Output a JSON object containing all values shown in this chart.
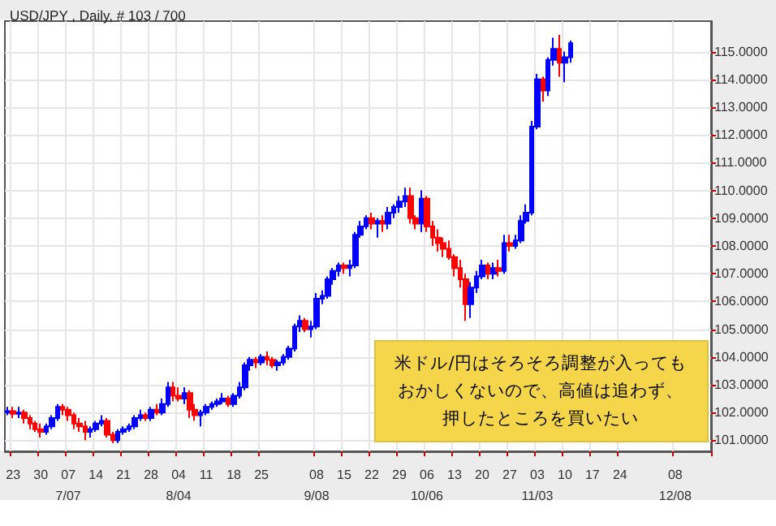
{
  "chart_data": {
    "type": "candlestick",
    "title": "USD/JPY , Daily, # 103 / 700",
    "categories": [
      null,
      "23",
      null,
      null,
      null,
      null,
      "30",
      null,
      null,
      null,
      null,
      "07\n7/07",
      null,
      null,
      null,
      null,
      "14",
      null,
      null,
      null,
      null,
      "21",
      null,
      null,
      null,
      null,
      "28",
      null,
      null,
      null,
      null,
      "04\n8/04",
      null,
      null,
      null,
      null,
      "11",
      null,
      null,
      null,
      null,
      "18",
      null,
      null,
      null,
      null,
      "25",
      null,
      null,
      null,
      null,
      null,
      null,
      null,
      null,
      null,
      "08\n9/08",
      null,
      null,
      null,
      null,
      "15",
      null,
      null,
      null,
      null,
      "22",
      null,
      null,
      null,
      null,
      "29",
      null,
      null,
      null,
      null,
      "06\n10/06",
      null,
      null,
      null,
      null,
      "13",
      null,
      null,
      null,
      null,
      "20",
      null,
      null,
      null,
      null,
      "27",
      null,
      null,
      null,
      null,
      "03\n11/03",
      null,
      null,
      null,
      null,
      "10",
      null,
      null,
      null,
      null,
      "17",
      null,
      null,
      null,
      null,
      "24",
      null,
      null,
      null,
      null,
      null,
      null,
      null,
      null,
      null,
      "08\n12/08",
      null,
      null,
      null,
      null,
      null,
      null
    ],
    "ohlc": [
      [
        102.0,
        102.2,
        101.9,
        102.05
      ],
      [
        102.05,
        102.2,
        101.8,
        101.95
      ],
      [
        101.95,
        102.2,
        101.8,
        102.0
      ],
      [
        102.0,
        102.1,
        101.6,
        101.8
      ],
      [
        101.8,
        101.9,
        101.4,
        101.6
      ],
      [
        101.6,
        101.7,
        101.3,
        101.4
      ],
      [
        101.4,
        101.6,
        101.1,
        101.3
      ],
      [
        101.3,
        101.6,
        101.2,
        101.5
      ],
      [
        101.5,
        101.9,
        101.4,
        101.8
      ],
      [
        101.8,
        102.3,
        101.7,
        102.2
      ],
      [
        102.2,
        102.3,
        101.9,
        102.1
      ],
      [
        102.1,
        102.2,
        101.7,
        101.9
      ],
      [
        101.9,
        102.0,
        101.4,
        101.6
      ],
      [
        101.6,
        101.8,
        101.3,
        101.5
      ],
      [
        101.5,
        101.7,
        101.0,
        101.3
      ],
      [
        101.3,
        101.5,
        101.1,
        101.4
      ],
      [
        101.4,
        101.7,
        101.3,
        101.6
      ],
      [
        101.6,
        101.9,
        101.5,
        101.7
      ],
      [
        101.7,
        101.8,
        101.1,
        101.2
      ],
      [
        101.2,
        101.3,
        100.9,
        101.0
      ],
      [
        101.0,
        101.4,
        100.9,
        101.3
      ],
      [
        101.3,
        101.5,
        101.2,
        101.4
      ],
      [
        101.4,
        101.6,
        101.3,
        101.5
      ],
      [
        101.5,
        101.9,
        101.4,
        101.8
      ],
      [
        101.8,
        102.1,
        101.7,
        101.9
      ],
      [
        101.9,
        102.0,
        101.7,
        101.8
      ],
      [
        101.8,
        102.2,
        101.7,
        102.1
      ],
      [
        102.1,
        102.3,
        101.9,
        102.0
      ],
      [
        102.0,
        102.5,
        101.9,
        102.3
      ],
      [
        102.3,
        103.1,
        102.2,
        102.9
      ],
      [
        102.9,
        103.1,
        102.4,
        102.6
      ],
      [
        102.6,
        102.9,
        102.4,
        102.5
      ],
      [
        102.5,
        102.9,
        102.3,
        102.7
      ],
      [
        102.7,
        102.8,
        101.8,
        102.1
      ],
      [
        102.1,
        102.3,
        101.7,
        101.9
      ],
      [
        101.9,
        102.1,
        101.5,
        102.0
      ],
      [
        102.0,
        102.3,
        101.9,
        102.2
      ],
      [
        102.2,
        102.4,
        102.1,
        102.3
      ],
      [
        102.3,
        102.5,
        102.2,
        102.4
      ],
      [
        102.4,
        102.7,
        102.3,
        102.5
      ],
      [
        102.5,
        102.6,
        102.2,
        102.3
      ],
      [
        102.3,
        102.7,
        102.2,
        102.6
      ],
      [
        102.6,
        103.1,
        102.5,
        102.9
      ],
      [
        102.9,
        103.8,
        102.8,
        103.7
      ],
      [
        103.7,
        104.0,
        103.5,
        103.9
      ],
      [
        103.9,
        104.0,
        103.6,
        103.8
      ],
      [
        103.8,
        104.1,
        103.7,
        104.0
      ],
      [
        104.0,
        104.2,
        103.7,
        103.9
      ],
      [
        103.9,
        104.0,
        103.6,
        103.7
      ],
      [
        103.7,
        103.9,
        103.5,
        103.8
      ],
      [
        103.8,
        104.1,
        103.7,
        104.0
      ],
      [
        104.0,
        104.4,
        103.9,
        104.3
      ],
      [
        104.3,
        105.2,
        104.2,
        105.1
      ],
      [
        105.1,
        105.5,
        104.9,
        105.3
      ],
      [
        105.3,
        105.4,
        104.9,
        105.0
      ],
      [
        105.0,
        105.3,
        104.7,
        105.1
      ],
      [
        105.1,
        106.3,
        105.0,
        106.1
      ],
      [
        106.1,
        106.4,
        105.9,
        106.2
      ],
      [
        106.2,
        106.9,
        106.1,
        106.8
      ],
      [
        106.8,
        107.2,
        106.6,
        107.1
      ],
      [
        107.1,
        107.4,
        106.9,
        107.3
      ],
      [
        107.3,
        107.4,
        107.0,
        107.2
      ],
      [
        107.2,
        107.5,
        106.9,
        107.3
      ],
      [
        107.3,
        108.5,
        107.2,
        108.4
      ],
      [
        108.4,
        108.9,
        108.3,
        108.7
      ],
      [
        108.7,
        109.1,
        108.6,
        109.0
      ],
      [
        109.0,
        109.2,
        108.6,
        108.8
      ],
      [
        108.8,
        109.0,
        108.3,
        108.9
      ],
      [
        108.9,
        109.1,
        108.5,
        108.8
      ],
      [
        108.8,
        109.4,
        108.6,
        109.2
      ],
      [
        109.2,
        109.5,
        109.0,
        109.4
      ],
      [
        109.4,
        109.8,
        109.2,
        109.6
      ],
      [
        109.6,
        110.1,
        109.4,
        109.8
      ],
      [
        109.8,
        110.1,
        108.8,
        109.0
      ],
      [
        109.0,
        109.1,
        108.6,
        108.8
      ],
      [
        108.8,
        110.0,
        108.5,
        109.7
      ],
      [
        109.7,
        109.8,
        108.5,
        108.7
      ],
      [
        108.7,
        108.9,
        108.0,
        108.3
      ],
      [
        108.3,
        108.6,
        107.8,
        108.1
      ],
      [
        108.1,
        108.3,
        107.6,
        107.9
      ],
      [
        107.9,
        108.2,
        107.5,
        107.6
      ],
      [
        107.6,
        107.7,
        106.9,
        107.2
      ],
      [
        107.2,
        107.5,
        106.5,
        106.8
      ],
      [
        106.8,
        107.0,
        105.3,
        105.9
      ],
      [
        105.9,
        106.7,
        105.4,
        106.5
      ],
      [
        106.5,
        107.1,
        106.3,
        106.9
      ],
      [
        106.9,
        107.5,
        106.8,
        107.3
      ],
      [
        107.3,
        107.4,
        106.8,
        107.0
      ],
      [
        107.0,
        107.4,
        106.8,
        107.2
      ],
      [
        107.2,
        107.5,
        106.9,
        107.1
      ],
      [
        107.1,
        108.4,
        107.0,
        108.1
      ],
      [
        108.1,
        108.4,
        107.8,
        108.0
      ],
      [
        108.0,
        108.4,
        107.9,
        108.2
      ],
      [
        108.2,
        109.1,
        108.1,
        108.9
      ],
      [
        108.9,
        109.5,
        108.8,
        109.2
      ],
      [
        109.2,
        112.5,
        109.1,
        112.3
      ],
      [
        112.3,
        114.2,
        112.2,
        114.0
      ],
      [
        114.0,
        114.1,
        113.2,
        113.6
      ],
      [
        113.6,
        114.8,
        113.4,
        114.7
      ],
      [
        114.7,
        115.5,
        114.5,
        115.1
      ],
      [
        115.1,
        115.6,
        114.1,
        114.6
      ],
      [
        114.6,
        115.0,
        113.9,
        114.8
      ],
      [
        114.8,
        115.4,
        114.6,
        115.3
      ],
      null,
      null,
      null,
      null,
      null,
      null,
      null,
      null,
      null,
      null,
      null,
      null,
      null,
      null,
      null,
      null,
      null,
      null,
      null,
      null,
      null,
      null,
      null,
      null,
      null
    ],
    "colors": [
      "#0000ff",
      "#ff0000",
      "#0000ff",
      "#ff0000",
      "#ff0000",
      "#ff0000",
      "#ff0000",
      "#0000ff",
      "#0000ff",
      "#0000ff",
      "#ff0000",
      "#ff0000",
      "#ff0000",
      "#ff0000",
      "#ff0000",
      "#0000ff",
      "#0000ff",
      "#0000ff",
      "#ff0000",
      "#ff0000",
      "#0000ff",
      "#0000ff",
      "#0000ff",
      "#0000ff",
      "#0000ff",
      "#ff0000",
      "#0000ff",
      "#ff0000",
      "#0000ff",
      "#0000ff",
      "#ff0000",
      "#ff0000",
      "#0000ff",
      "#ff0000",
      "#ff0000",
      "#0000ff",
      "#0000ff",
      "#0000ff",
      "#0000ff",
      "#0000ff",
      "#ff0000",
      "#0000ff",
      "#0000ff",
      "#0000ff",
      "#0000ff",
      "#ff0000",
      "#0000ff",
      "#ff0000",
      "#ff0000",
      "#0000ff",
      "#0000ff",
      "#0000ff",
      "#0000ff",
      "#0000ff",
      "#ff0000",
      "#0000ff",
      "#0000ff",
      "#0000ff",
      "#0000ff",
      "#0000ff",
      "#0000ff",
      "#ff0000",
      "#0000ff",
      "#0000ff",
      "#0000ff",
      "#0000ff",
      "#ff0000",
      "#0000ff",
      "#ff0000",
      "#0000ff",
      "#0000ff",
      "#0000ff",
      "#0000ff",
      "#ff0000",
      "#ff0000",
      "#0000ff",
      "#ff0000",
      "#ff0000",
      "#ff0000",
      "#ff0000",
      "#ff0000",
      "#ff0000",
      "#ff0000",
      "#ff0000",
      "#0000ff",
      "#0000ff",
      "#0000ff",
      "#ff0000",
      "#0000ff",
      "#ff0000",
      "#0000ff",
      "#ff0000",
      "#0000ff",
      "#0000ff",
      "#0000ff",
      "#0000ff",
      "#0000ff",
      "#ff0000",
      "#0000ff",
      "#0000ff",
      "#ff0000",
      "#0000ff",
      "#0000ff",
      null,
      null,
      null,
      null,
      null,
      null,
      null,
      null,
      null,
      null,
      null,
      null,
      null,
      null,
      null,
      null,
      null,
      null,
      null,
      null,
      null,
      null,
      null,
      null,
      null
    ],
    "ylim": [
      100.6,
      116.1
    ],
    "yticks": [
      {
        "value": 101,
        "label": "101.0000"
      },
      {
        "value": 102,
        "label": "102.0000"
      },
      {
        "value": 103,
        "label": "103.0000"
      },
      {
        "value": 104,
        "label": "104.0000"
      },
      {
        "value": 105,
        "label": "105.0000"
      },
      {
        "value": 106,
        "label": "106.0000"
      },
      {
        "value": 107,
        "label": "107.0000"
      },
      {
        "value": 108,
        "label": "108.0000"
      },
      {
        "value": 109,
        "label": "109.0000"
      },
      {
        "value": 110,
        "label": "110.0000"
      },
      {
        "value": 111,
        "label": "111.0000"
      },
      {
        "value": 112,
        "label": "112.0000"
      },
      {
        "value": 113,
        "label": "113.0000"
      },
      {
        "value": 114,
        "label": "114.0000"
      },
      {
        "value": 115,
        "label": "115.0000"
      }
    ],
    "grid": true,
    "annotations": [
      "米ドル/円はそろそろ調整が入っても",
      "おかしくないので、高値は追わず、",
      "押したところを買いたい"
    ]
  }
}
